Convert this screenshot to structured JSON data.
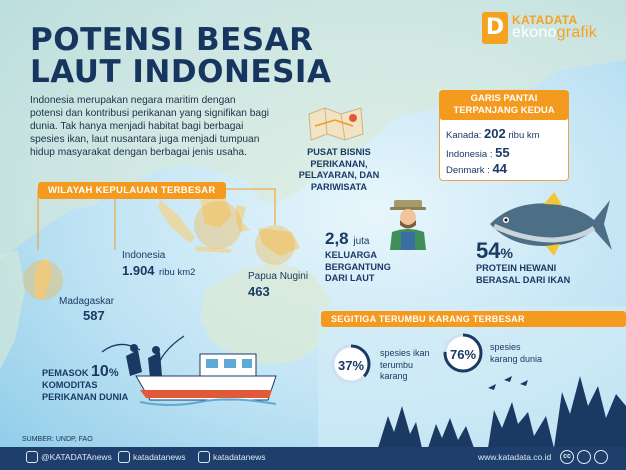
{
  "title_line1": "POTENSI BESAR",
  "title_line2": "LAUT INDONESIA",
  "intro": "Indonesia merupakan negara maritim dengan potensi dan kontribusi perikanan yang signifikan bagi dunia. Tak hanya menjadi habitat bagi berbagai spesies ikan, laut nusantara juga menjadi tumpuan hidup masyarakat dengan berbagai jenis usaha.",
  "logo": {
    "letter": "D",
    "top": "KATADATA",
    "bottom_a": "ekono",
    "bottom_b": "grafik"
  },
  "business": {
    "text_line1": "PUSAT BISNIS PERIKANAN,",
    "text_line2": "PELAYARAN, DAN",
    "text_line3": "PARIWISATA",
    "icon": "folded-map-icon"
  },
  "coastline": {
    "heading_line1": "GARIS PANTAI",
    "heading_line2": "TERPANJANG KEDUA",
    "rows": [
      {
        "country": "Kanada",
        "value": "202",
        "unit": "ribu km"
      },
      {
        "country": "Indonesia",
        "value": "55",
        "unit": ""
      },
      {
        "country": "Denmark",
        "value": "44",
        "unit": ""
      }
    ]
  },
  "islands": {
    "heading": "WILAYAH KEPULAUAN TERBESAR",
    "items": [
      {
        "name": "Indonesia",
        "value": "1.904",
        "unit": "ribu km2"
      },
      {
        "name": "Papua Nugini",
        "value": "463",
        "unit": ""
      },
      {
        "name": "Madagaskar",
        "value": "587",
        "unit": ""
      }
    ]
  },
  "families": {
    "value": "2,8",
    "unit": "juta",
    "line1": "KELUARGA",
    "line2": "BERGANTUNG",
    "line3": "DARI LAUT",
    "icon": "fisherman-icon"
  },
  "protein": {
    "value": "54",
    "unit": "%",
    "line1": "PROTEIN HEWANI",
    "line2": "BERASAL DARI IKAN",
    "icon": "tuna-icon"
  },
  "supplier": {
    "label": "PEMASOK",
    "value": "10",
    "unit": "%",
    "line2": "KOMODITAS",
    "line3": "PERIKANAN DUNIA",
    "icon": "fishing-boat-icon"
  },
  "coral": {
    "heading": "SEGITIGA TERUMBU KARANG TERBESAR",
    "items": [
      {
        "value": "37%",
        "fraction": 0.37,
        "line1": "spesies ikan",
        "line2": "terumbu",
        "line3": "karang"
      },
      {
        "value": "76%",
        "fraction": 0.76,
        "line1": "spesies",
        "line2": "karang dunia",
        "line3": ""
      }
    ]
  },
  "source": "SUMBER: UNDP, FAO",
  "footer": {
    "twitter": "@KATADATAnews",
    "facebook": "katadatanews",
    "instagram": "katadatanews",
    "website": "www.katadata.co.id",
    "cc": "cc"
  },
  "colors": {
    "navy": "#1b3a63",
    "orange": "#f49a1f",
    "sea": "#bfe3f4",
    "land": "#dbe9d3",
    "footer": "#1e3f6b"
  }
}
